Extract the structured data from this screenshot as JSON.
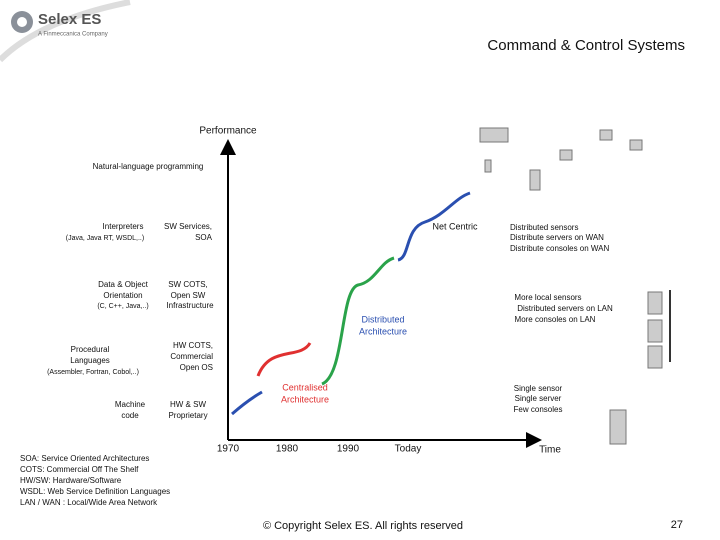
{
  "header": {
    "logo": "Selex ES",
    "logo_sub": "A Finmeccanica Company",
    "title": "Command & Control Systems"
  },
  "axis": {
    "y_label": "Performance",
    "x_label": "Time",
    "x_labels": [
      "1970",
      "1980",
      "1990",
      "Today"
    ]
  },
  "labels": {
    "natural": "Natural-language programming",
    "interpreters": [
      "Interpreters",
      "(Java, Java RT, WSDL,..)"
    ],
    "sw_services": [
      "SW Services,",
      "SOA"
    ],
    "data_object": [
      "Data & Object",
      "Orientation",
      "(C, C++, Java,..)"
    ],
    "sw_cots": [
      "SW COTS,",
      "Open SW",
      "Infrastructure"
    ],
    "procedural": [
      "Procedural",
      "Languages",
      "(Assembler, Fortran, Cobol,..)"
    ],
    "hw_cots": [
      "HW COTS,",
      "Commercial",
      "Open OS"
    ],
    "machine": [
      "Machine",
      "code"
    ],
    "hw_sw": [
      "HW & SW",
      "Proprietary"
    ]
  },
  "curves": {
    "net_centric": "Net Centric",
    "distributed": [
      "Distributed",
      "Architecture"
    ],
    "centralised": [
      "Centralised",
      "Architecture"
    ]
  },
  "descriptions": {
    "wan": [
      "Distributed sensors",
      "Distribute servers on WAN",
      "Distribute consoles on WAN"
    ],
    "lan": [
      "More local sensors",
      "Distributed servers on LAN",
      "More consoles on LAN"
    ],
    "single": [
      "Single sensor",
      "Single server",
      "Few consoles"
    ]
  },
  "glossary": [
    "SOA: Service Oriented Architectures",
    "COTS: Commercial Off The Shelf",
    "HW/SW: Hardware/Software",
    "WSDL: Web Service Definition Languages",
    "LAN / WAN : Local/Wide Area Network"
  ],
  "footer": {
    "copyright": "© Copyright Selex ES. All rights reserved",
    "page": "27"
  }
}
